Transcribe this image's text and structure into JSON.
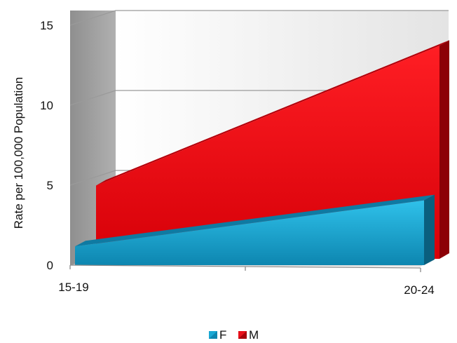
{
  "chart_data": {
    "type": "area",
    "style": "3d",
    "categories": [
      "15-19",
      "20-24"
    ],
    "series": [
      {
        "name": "F",
        "values": [
          1.1,
          3.8
        ],
        "color": "#1aa8d4"
      },
      {
        "name": "M",
        "values": [
          4.3,
          12.5
        ],
        "color": "#e8101a"
      }
    ],
    "xlabel": "",
    "ylabel": "Rate per 100,000 Population",
    "ylim": [
      0,
      15
    ],
    "yticks": [
      "0",
      "5",
      "10",
      "15"
    ],
    "grid": true,
    "legend": "bottom"
  }
}
